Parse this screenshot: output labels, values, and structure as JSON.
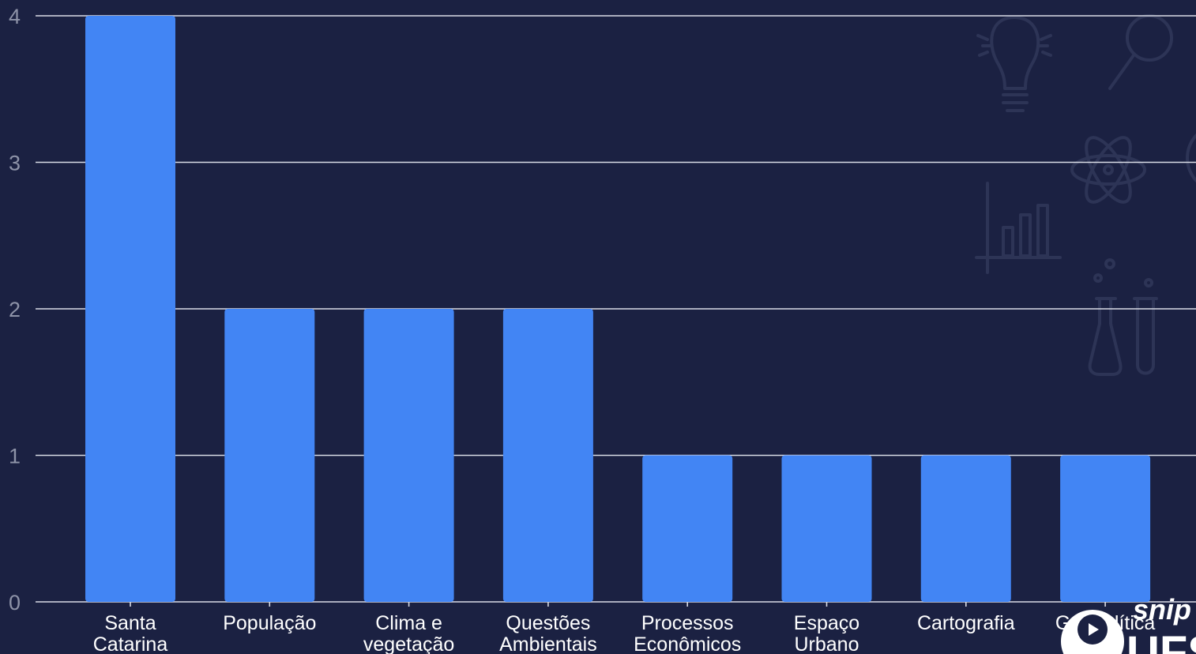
{
  "chart_data": {
    "type": "bar",
    "categories": [
      [
        "Santa",
        "Catarina"
      ],
      [
        "População"
      ],
      [
        "Clima e",
        "vegetação"
      ],
      [
        "Questões",
        "Ambientais"
      ],
      [
        "Processos",
        "Econômicos"
      ],
      [
        "Espaço",
        "Urbano"
      ],
      [
        "Cartografia"
      ],
      [
        "Geopolítica"
      ]
    ],
    "values": [
      4,
      2,
      2,
      2,
      1,
      1,
      1,
      1
    ],
    "yticks": [
      "0",
      "1",
      "2",
      "3",
      "4"
    ],
    "ylim": [
      0,
      4
    ],
    "grid": true,
    "bar_color": "#4285f4",
    "background_color": "#1b2142",
    "title": "",
    "xlabel": "",
    "ylabel": ""
  },
  "logo": {
    "text_top": "snip",
    "text_bottom": "UFS",
    "icon": "play-circle-icon"
  },
  "decorations": [
    "lightbulb-icon",
    "magnifier-icon",
    "atom-icon",
    "bar-chart-icon",
    "flask-icon",
    "test-tube-icon"
  ]
}
